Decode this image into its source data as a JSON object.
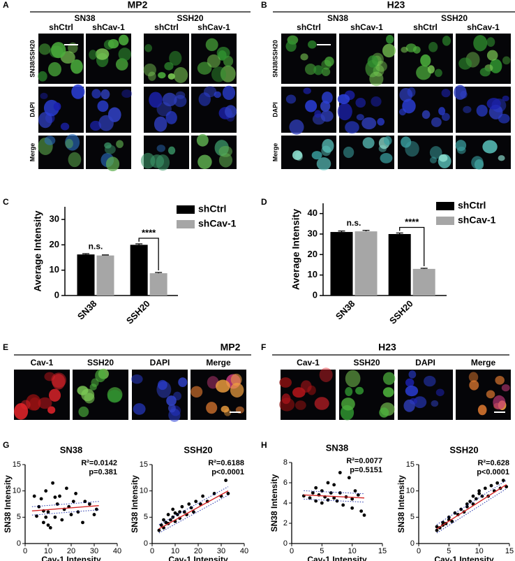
{
  "figure": {
    "A": {
      "letter": "A",
      "title": "MP2",
      "groups": [
        "SN38",
        "SSH20"
      ],
      "columns": [
        "shCtrl",
        "shCav-1",
        "shCtrl",
        "shCav-1"
      ],
      "rows": [
        "SN38/SSH20",
        "DAPI",
        "Merge"
      ]
    },
    "B": {
      "letter": "B",
      "title": "H23",
      "groups": [
        "SN38",
        "SSH20"
      ],
      "columns": [
        "shCtrl",
        "shCav-1",
        "shCtrl",
        "shCav-1"
      ],
      "rows": [
        "SN38/SSH20",
        "DAPI",
        "Merge"
      ]
    },
    "E": {
      "letter": "E",
      "title": "MP2",
      "columns": [
        "Cav-1",
        "SSH20",
        "DAPI",
        "Merge"
      ]
    },
    "F": {
      "letter": "F",
      "title": "H23",
      "columns": [
        "Cav-1",
        "SSH20",
        "DAPI",
        "Merge"
      ]
    },
    "G": {
      "letter": "G"
    },
    "H": {
      "letter": "H"
    }
  },
  "chart_data": [
    {
      "type": "bar",
      "panel": "C",
      "ylabel": "Average Intensity",
      "categories": [
        "SN38",
        "SSH20"
      ],
      "series": [
        {
          "name": "shCtrl",
          "color": "#000000",
          "values": [
            16.2,
            20.0
          ],
          "errors": [
            0.3,
            0.4
          ]
        },
        {
          "name": "shCav-1",
          "color": "#a6a6a6",
          "values": [
            15.8,
            8.8
          ],
          "errors": [
            0.2,
            0.3
          ]
        }
      ],
      "annotations": [
        "n.s.",
        "****"
      ],
      "ylim": [
        0,
        35
      ],
      "yticks": [
        0,
        10,
        20,
        30
      ]
    },
    {
      "type": "bar",
      "panel": "D",
      "ylabel": "Average Intensity",
      "categories": [
        "SN38",
        "SSH20"
      ],
      "series": [
        {
          "name": "shCtrl",
          "color": "#000000",
          "values": [
            31.0,
            30.0
          ],
          "errors": [
            0.5,
            0.5
          ]
        },
        {
          "name": "shCav-1",
          "color": "#a6a6a6",
          "values": [
            31.3,
            13.0
          ],
          "errors": [
            0.5,
            0.3
          ]
        }
      ],
      "annotations": [
        "n.s.",
        "****"
      ],
      "ylim": [
        0,
        45
      ],
      "yticks": [
        0,
        10,
        20,
        30,
        40
      ]
    },
    {
      "type": "scatter",
      "title": "SN38",
      "xlabel": "Cav-1 Intensity",
      "ylabel": "SN38 Intensity",
      "color": "#000000",
      "x": [
        5,
        6,
        7,
        8,
        9,
        10,
        11,
        12,
        13,
        14,
        15,
        16,
        17,
        18,
        19,
        20,
        21,
        22,
        23,
        25,
        26,
        28,
        30,
        31,
        4,
        8,
        10,
        13,
        9
      ],
      "y": [
        5.2,
        7,
        8.5,
        4,
        10,
        6,
        3,
        11.5,
        5,
        7.5,
        9,
        4.5,
        6.5,
        10.5,
        7,
        5.5,
        8,
        9.5,
        6,
        4,
        8,
        7.5,
        5.5,
        6.5,
        9,
        6.2,
        3.5,
        8.8,
        5
      ],
      "fit": {
        "x": [
          3,
          32
        ],
        "y": [
          6.2,
          7.2
        ],
        "color": "#d62728"
      },
      "annotations": [
        "R²=0.0142",
        "p=0.381"
      ],
      "xlim": [
        0,
        40
      ],
      "xticks": [
        0,
        10,
        20,
        30,
        40
      ],
      "ylim": [
        0,
        15
      ],
      "yticks": [
        0,
        5,
        10,
        15
      ]
    },
    {
      "type": "scatter",
      "title": "SSH20",
      "xlabel": "Cav-1 Intensity",
      "ylabel": "SN38 Intensity",
      "color": "#000000",
      "x": [
        3,
        4,
        5,
        5,
        6,
        7,
        7,
        8,
        9,
        9,
        10,
        10,
        11,
        12,
        12,
        13,
        14,
        15,
        16,
        17,
        18,
        19,
        21,
        22,
        24,
        27,
        30,
        32,
        33
      ],
      "y": [
        2.5,
        3.5,
        3,
        4.5,
        4,
        3.8,
        5.5,
        4.5,
        5,
        6.5,
        4.2,
        5.8,
        5.5,
        6,
        4.8,
        7,
        6,
        5.5,
        7.5,
        6.8,
        6,
        8,
        7.5,
        9,
        8,
        9.5,
        9,
        12,
        9.5
      ],
      "fit": {
        "x": [
          3,
          33
        ],
        "y": [
          2.8,
          10
        ],
        "color": "#d62728"
      },
      "annotations": [
        "R²=0.6188",
        "p<0.0001"
      ],
      "xlim": [
        0,
        40
      ],
      "xticks": [
        0,
        10,
        20,
        30,
        40
      ],
      "ylim": [
        0,
        15
      ],
      "yticks": [
        0,
        5,
        10,
        15
      ]
    },
    {
      "type": "scatter",
      "title": "SN38",
      "xlabel": "Cav-1 Intensity",
      "ylabel": "SN38 Intensity",
      "color": "#000000",
      "x": [
        3,
        3.5,
        4,
        4,
        4.5,
        5,
        5,
        5.5,
        6,
        6,
        6.5,
        7,
        7,
        7.5,
        8,
        8.5,
        9,
        9.5,
        10,
        10,
        10.5,
        11,
        11.5,
        12,
        2,
        8
      ],
      "y": [
        4.5,
        5,
        4.2,
        5.5,
        4.8,
        4,
        5.2,
        4.6,
        6,
        4.3,
        5,
        4.5,
        5.8,
        4.2,
        5,
        3.8,
        4.6,
        6.5,
        4.4,
        3.5,
        5.2,
        4.8,
        3.2,
        2.8,
        4.7,
        7
      ],
      "fit": {
        "x": [
          2,
          12
        ],
        "y": [
          4.8,
          4.5
        ],
        "color": "#d62728"
      },
      "annotations": [
        "R²=0.0077",
        "p=0.5151"
      ],
      "xlim": [
        0,
        15
      ],
      "xticks": [
        0,
        5,
        10,
        15
      ],
      "ylim": [
        0,
        8
      ],
      "yticks": [
        0,
        2,
        4,
        6,
        8
      ]
    },
    {
      "type": "scatter",
      "title": "SSH20",
      "xlabel": "Cav-1 Intensity",
      "ylabel": "SN38 Intensity",
      "color": "#000000",
      "x": [
        3,
        3,
        3.5,
        4,
        4,
        4.5,
        5,
        5,
        5.5,
        6,
        6.5,
        7,
        7.5,
        8,
        8,
        8.5,
        9,
        9,
        9.5,
        10,
        10,
        10.5,
        11,
        11.5,
        12,
        12.5,
        13,
        13.5,
        14,
        14.5
      ],
      "y": [
        2.5,
        3.2,
        3,
        3.5,
        4,
        3.8,
        4.5,
        5,
        4.2,
        5.8,
        5.5,
        6.5,
        6,
        7,
        7.5,
        8,
        7.5,
        9,
        8.5,
        9.5,
        10,
        9,
        10.5,
        9,
        11,
        10,
        11.5,
        10.5,
        12,
        10.8
      ],
      "fit": {
        "x": [
          3,
          14.5
        ],
        "y": [
          2.8,
          11.2
        ],
        "color": "#d62728"
      },
      "annotations": [
        "R²=0.628",
        "p<0.0001"
      ],
      "xlim": [
        0,
        15
      ],
      "xticks": [
        0,
        5,
        10,
        15
      ],
      "ylim": [
        0,
        15
      ],
      "yticks": [
        0,
        5,
        10,
        15
      ]
    }
  ]
}
